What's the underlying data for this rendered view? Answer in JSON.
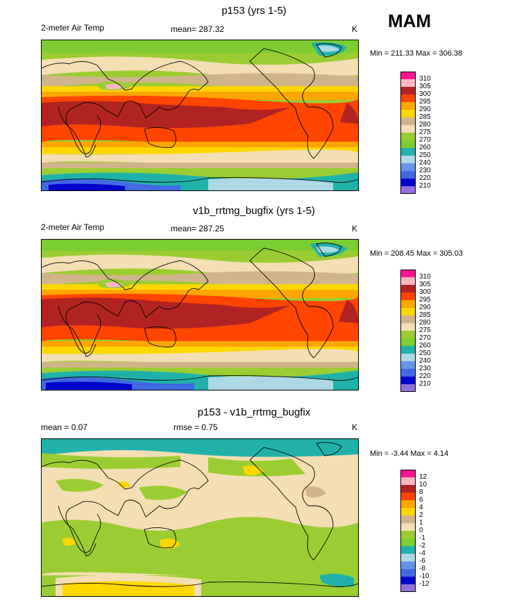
{
  "season": "MAM",
  "units": "K",
  "panels": [
    {
      "title": "p153 (yrs 1-5)",
      "variable": "2-meter Air Temp",
      "mean_text": "mean= 287.32",
      "units": "K",
      "minmax": "Min = 211.33 Max = 306.38",
      "legend_levels": [
        "310",
        "305",
        "300",
        "295",
        "290",
        "285",
        "280",
        "275",
        "270",
        "260",
        "250",
        "240",
        "230",
        "220",
        "210"
      ],
      "legend_colors": [
        "#ff1493",
        "#ffb6c1",
        "#b22222",
        "#ff4500",
        "#ffa500",
        "#ffd700",
        "#d2b48c",
        "#f5deb3",
        "#9acd32",
        "#7ccd32",
        "#20b2aa",
        "#add8e6",
        "#6495ed",
        "#4169e1",
        "#0000cd",
        "#9370db"
      ]
    },
    {
      "title": "v1b_rrtmg_bugfix (yrs 1-5)",
      "variable": "2-meter Air Temp",
      "mean_text": "mean= 287.25",
      "units": "K",
      "minmax": "Min = 208.45 Max = 305.03",
      "legend_levels": [
        "310",
        "305",
        "300",
        "295",
        "290",
        "285",
        "280",
        "275",
        "270",
        "260",
        "250",
        "240",
        "230",
        "220",
        "210"
      ],
      "legend_colors": [
        "#ff1493",
        "#ffb6c1",
        "#b22222",
        "#ff4500",
        "#ffa500",
        "#ffd700",
        "#d2b48c",
        "#f5deb3",
        "#9acd32",
        "#7ccd32",
        "#20b2aa",
        "#add8e6",
        "#6495ed",
        "#4169e1",
        "#0000cd",
        "#9370db"
      ]
    },
    {
      "title": "p153 - v1b_rrtmg_bugfix",
      "mean_text": "mean =   0.07",
      "rmse_text": "rmse =   0.75",
      "units": "K",
      "minmax": "Min =  -3.44 Max =   4.14",
      "legend_levels": [
        "12",
        "10",
        "8",
        "6",
        "4",
        "2",
        "1",
        "0",
        "-1",
        "-2",
        "-4",
        "-6",
        "-8",
        "-10",
        "-12"
      ],
      "legend_colors": [
        "#ff1493",
        "#ffb6c1",
        "#b22222",
        "#ff4500",
        "#ffa500",
        "#ffd700",
        "#d2b48c",
        "#f5deb3",
        "#9acd32",
        "#7ccd32",
        "#20b2aa",
        "#add8e6",
        "#6495ed",
        "#4169e1",
        "#0000cd",
        "#9370db"
      ]
    }
  ]
}
